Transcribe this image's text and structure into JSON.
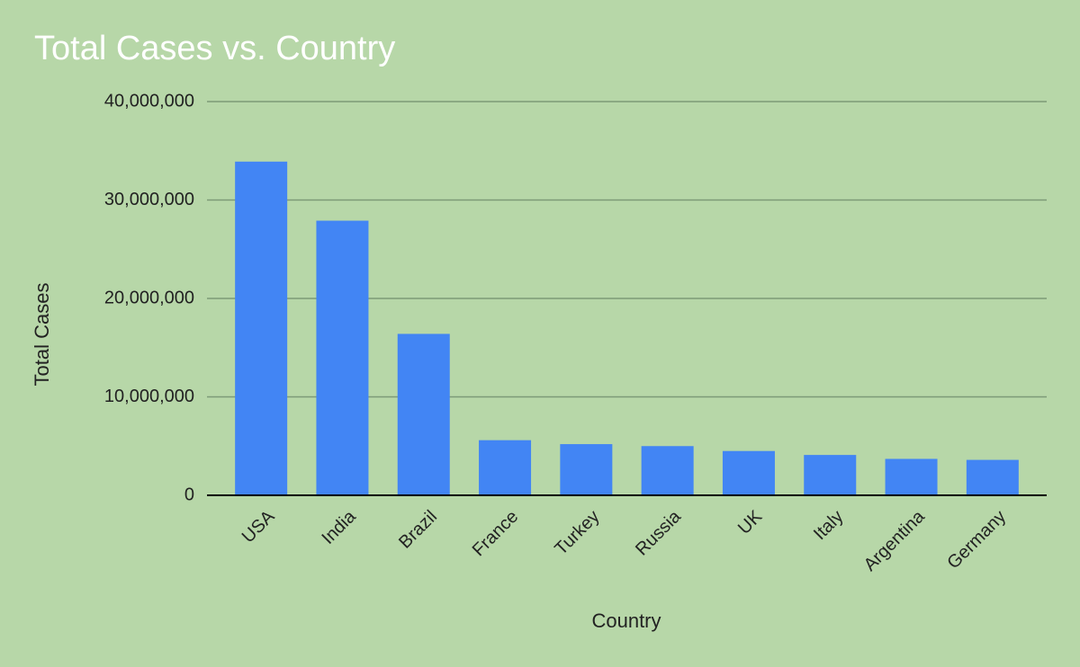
{
  "chart_data": {
    "type": "bar",
    "title": "Total Cases vs. Country",
    "x_label": "Country",
    "y_label": "Total Cases",
    "categories": [
      "USA",
      "India",
      "Brazil",
      "France",
      "Turkey",
      "Russia",
      "UK",
      "Italy",
      "Argentina",
      "Germany"
    ],
    "values": [
      33900000,
      27900000,
      16400000,
      5600000,
      5200000,
      5000000,
      4500000,
      4100000,
      3700000,
      3600000
    ],
    "color": "#4285f4",
    "ylim": [
      0,
      40000000
    ],
    "yticks": [
      0,
      {
        "value": 10000000,
        "label": "10,000,000"
      },
      {
        "value": 20000000,
        "label": "20,000,000"
      },
      {
        "value": 30000000,
        "label": "30,000,000"
      },
      {
        "value": 40000000,
        "label": "40,000,000"
      }
    ],
    "grid": true
  }
}
